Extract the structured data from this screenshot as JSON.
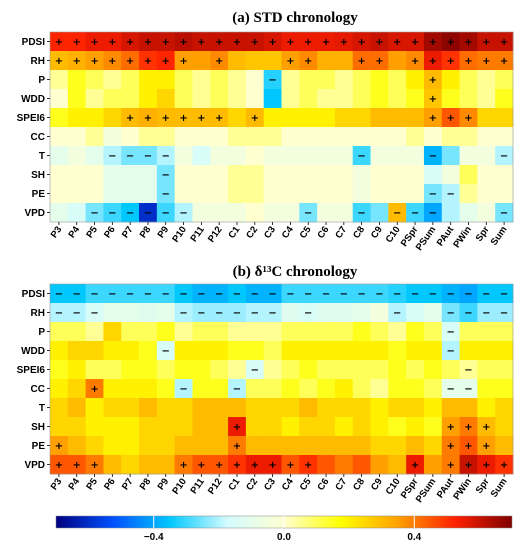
{
  "chart_data": [
    {
      "type": "heatmap",
      "title": "(a) STD chronology",
      "rows": [
        "PDSI",
        "RH",
        "P",
        "WDD",
        "SPEI6",
        "CC",
        "T",
        "SH",
        "PE",
        "VPD"
      ],
      "columns": [
        "P3",
        "P4",
        "P5",
        "P6",
        "P7",
        "P8",
        "P9",
        "P10",
        "P11",
        "P12",
        "C1",
        "C2",
        "C3",
        "C4",
        "C5",
        "C6",
        "C7",
        "C8",
        "C9",
        "C10",
        "PSpr",
        "PSum",
        "PAut",
        "PWin",
        "Spr",
        "Sum"
      ],
      "values": [
        [
          0.52,
          0.52,
          0.55,
          0.55,
          0.58,
          0.6,
          0.6,
          0.62,
          0.6,
          0.6,
          0.6,
          0.6,
          0.58,
          0.55,
          0.55,
          0.55,
          0.56,
          0.58,
          0.6,
          0.58,
          0.58,
          0.65,
          0.68,
          0.65,
          0.6,
          0.6
        ],
        [
          0.3,
          0.32,
          0.35,
          0.38,
          0.42,
          0.5,
          0.52,
          0.35,
          0.35,
          0.38,
          0.3,
          0.28,
          0.28,
          0.35,
          0.38,
          0.32,
          0.32,
          0.42,
          0.42,
          0.35,
          0.38,
          0.55,
          0.5,
          0.42,
          0.4,
          0.4
        ],
        [
          0.05,
          0.15,
          0.1,
          0.05,
          0.1,
          0.2,
          0.2,
          0.1,
          0.05,
          0.1,
          0.05,
          0.0,
          -0.32,
          0.05,
          0.1,
          0.1,
          0.05,
          0.1,
          0.15,
          0.1,
          0.2,
          0.3,
          0.2,
          0.1,
          0.05,
          0.1
        ],
        [
          0.0,
          0.15,
          0.05,
          0.1,
          0.1,
          0.2,
          0.25,
          0.1,
          0.05,
          0.1,
          0.05,
          0.0,
          -0.35,
          0.05,
          0.1,
          0.05,
          0.05,
          0.1,
          0.15,
          0.1,
          0.15,
          0.28,
          0.15,
          0.1,
          0.05,
          0.15
        ],
        [
          0.15,
          0.2,
          0.2,
          0.25,
          0.3,
          0.32,
          0.3,
          0.3,
          0.3,
          0.3,
          0.25,
          0.3,
          0.2,
          0.2,
          0.2,
          0.2,
          0.25,
          0.25,
          0.3,
          0.3,
          0.3,
          0.35,
          0.45,
          0.38,
          0.25,
          0.25
        ],
        [
          0.0,
          0.0,
          0.05,
          -0.05,
          0.0,
          0.05,
          0.05,
          0.0,
          0.0,
          0.0,
          0.05,
          0.05,
          0.05,
          0.0,
          0.0,
          0.0,
          0.0,
          0.0,
          0.0,
          0.0,
          0.05,
          0.0,
          0.05,
          0.05,
          0.0,
          0.0
        ],
        [
          -0.1,
          -0.05,
          -0.1,
          -0.2,
          -0.25,
          -0.25,
          -0.2,
          -0.05,
          -0.15,
          -0.05,
          -0.05,
          0.0,
          -0.05,
          -0.05,
          -0.05,
          -0.05,
          -0.05,
          -0.3,
          -0.05,
          -0.05,
          -0.05,
          -0.38,
          -0.25,
          -0.05,
          -0.05,
          -0.2
        ],
        [
          0.0,
          0.0,
          0.0,
          -0.1,
          -0.1,
          -0.1,
          -0.25,
          0.0,
          0.0,
          0.0,
          0.05,
          0.05,
          0.0,
          0.0,
          0.0,
          0.0,
          0.0,
          -0.05,
          0.0,
          0.0,
          0.0,
          -0.15,
          -0.05,
          0.1,
          0.0,
          0.0
        ],
        [
          0.0,
          0.0,
          0.0,
          -0.1,
          -0.1,
          -0.1,
          -0.25,
          0.0,
          0.0,
          0.0,
          0.05,
          0.05,
          0.0,
          0.0,
          0.0,
          0.0,
          0.0,
          -0.05,
          0.0,
          0.0,
          0.0,
          -0.25,
          -0.2,
          0.05,
          0.0,
          0.0
        ],
        [
          -0.1,
          -0.15,
          -0.25,
          -0.3,
          -0.35,
          -0.6,
          -0.3,
          -0.2,
          -0.05,
          -0.05,
          -0.05,
          0.0,
          -0.05,
          -0.05,
          -0.25,
          -0.05,
          -0.05,
          -0.3,
          -0.25,
          0.3,
          -0.3,
          -0.4,
          -0.2,
          -0.1,
          -0.05,
          -0.25
        ]
      ],
      "significance": [
        [
          "+",
          "+",
          "+",
          "+",
          "+",
          "+",
          "+",
          "+",
          "+",
          "+",
          "+",
          "+",
          "+",
          "+",
          "+",
          "+",
          "+",
          "+",
          "+",
          "+",
          "+",
          "+",
          "+",
          "+",
          "+",
          "+"
        ],
        [
          "+",
          "+",
          "+",
          "+",
          "+",
          "+",
          "+",
          "+",
          "",
          "+",
          "",
          "",
          "",
          "+",
          "+",
          "",
          "",
          "+",
          "+",
          "",
          "+",
          "+",
          "+",
          "+",
          "+",
          "+"
        ],
        [
          "",
          "",
          "",
          "",
          "",
          "",
          "",
          "",
          "",
          "",
          "",
          "",
          "−",
          "",
          "",
          "",
          "",
          "",
          "",
          "",
          "",
          "+",
          "",
          "",
          "",
          ""
        ],
        [
          "",
          "",
          "",
          "",
          "",
          "",
          "",
          "",
          "",
          "",
          "",
          "",
          "",
          "",
          "",
          "",
          "",
          "",
          "",
          "",
          "",
          "+",
          "",
          "",
          "",
          ""
        ],
        [
          "",
          "",
          "",
          "",
          "+",
          "+",
          "+",
          "+",
          "+",
          "+",
          "",
          "+",
          "",
          "",
          "",
          "",
          "",
          "",
          "",
          "",
          "",
          "+",
          "+",
          "+",
          "",
          ""
        ],
        [
          "",
          "",
          "",
          "",
          "",
          "",
          "",
          "",
          "",
          "",
          "",
          "",
          "",
          "",
          "",
          "",
          "",
          "",
          "",
          "",
          "",
          "",
          "",
          "",
          "",
          ""
        ],
        [
          "",
          "",
          "",
          "−",
          "−",
          "−",
          "−",
          "",
          "",
          "",
          "",
          "",
          "",
          "",
          "",
          "",
          "",
          "−",
          "",
          "",
          "",
          "−",
          "",
          "",
          "",
          "−"
        ],
        [
          "",
          "",
          "",
          "",
          "",
          "",
          "−",
          "",
          "",
          "",
          "",
          "",
          "",
          "",
          "",
          "",
          "",
          "",
          "",
          "",
          "",
          "",
          "",
          "",
          "",
          ""
        ],
        [
          "",
          "",
          "",
          "",
          "",
          "",
          "−",
          "",
          "",
          "",
          "",
          "",
          "",
          "",
          "",
          "",
          "",
          "",
          "",
          "",
          "",
          "−",
          "−",
          "",
          "",
          ""
        ],
        [
          "",
          "",
          "−",
          "−",
          "−",
          "−",
          "−",
          "−",
          "",
          "",
          "",
          "",
          "",
          "",
          "−",
          "",
          "",
          "−",
          "",
          "−",
          "−",
          "−",
          "",
          "",
          "",
          "−"
        ]
      ]
    },
    {
      "type": "heatmap",
      "title": "(b) δ¹³C chronology",
      "rows": [
        "PDSI",
        "RH",
        "P",
        "WDD",
        "SPEI6",
        "CC",
        "T",
        "SH",
        "PE",
        "VPD"
      ],
      "columns": [
        "P3",
        "P4",
        "P5",
        "P6",
        "P7",
        "P8",
        "P9",
        "P10",
        "P11",
        "P12",
        "C1",
        "C2",
        "C3",
        "C4",
        "C5",
        "C6",
        "C7",
        "C8",
        "C9",
        "C10",
        "PSpr",
        "PSum",
        "PAut",
        "PWin",
        "Spr",
        "Sum"
      ],
      "values": [
        [
          -0.35,
          -0.35,
          -0.3,
          -0.3,
          -0.3,
          -0.3,
          -0.3,
          -0.35,
          -0.38,
          -0.38,
          -0.35,
          -0.38,
          -0.38,
          -0.3,
          -0.3,
          -0.3,
          -0.3,
          -0.3,
          -0.3,
          -0.32,
          -0.35,
          -0.35,
          -0.38,
          -0.4,
          -0.35,
          -0.35
        ],
        [
          -0.2,
          -0.2,
          -0.15,
          -0.1,
          -0.1,
          -0.12,
          -0.1,
          -0.2,
          -0.22,
          -0.22,
          -0.22,
          -0.2,
          -0.2,
          -0.12,
          -0.15,
          -0.12,
          -0.12,
          -0.1,
          -0.05,
          -0.2,
          -0.15,
          -0.1,
          -0.25,
          -0.3,
          -0.22,
          -0.22
        ],
        [
          0.1,
          0.1,
          0.05,
          0.25,
          0.1,
          0.1,
          0.15,
          0.05,
          0.1,
          0.1,
          0.05,
          0.05,
          0.05,
          0.1,
          0.1,
          0.1,
          0.1,
          0.15,
          0.1,
          0.05,
          0.15,
          0.1,
          -0.15,
          0.1,
          0.1,
          0.1
        ],
        [
          0.2,
          0.25,
          0.25,
          0.2,
          0.2,
          0.15,
          -0.15,
          0.2,
          0.2,
          0.2,
          0.15,
          0.15,
          0.1,
          0.2,
          0.2,
          0.2,
          0.2,
          0.2,
          0.2,
          0.15,
          0.2,
          0.2,
          -0.2,
          0.2,
          0.2,
          0.2
        ],
        [
          0.15,
          0.2,
          0.1,
          0.1,
          0.15,
          0.15,
          0.1,
          0.15,
          0.15,
          0.1,
          0.05,
          -0.15,
          0.05,
          0.1,
          0.15,
          0.1,
          0.1,
          0.1,
          0.1,
          0.15,
          0.1,
          0.15,
          0.1,
          0.05,
          0.1,
          0.1
        ],
        [
          0.2,
          0.25,
          0.4,
          0.2,
          0.2,
          0.2,
          0.15,
          -0.2,
          0.15,
          0.15,
          -0.2,
          0.1,
          0.1,
          0.15,
          0.1,
          0.15,
          0.2,
          0.1,
          0.05,
          0.15,
          0.15,
          0.1,
          -0.1,
          -0.1,
          0.15,
          0.15
        ],
        [
          0.25,
          0.3,
          0.2,
          0.25,
          0.25,
          0.3,
          0.25,
          0.25,
          0.3,
          0.3,
          0.3,
          0.25,
          0.25,
          0.25,
          0.3,
          0.25,
          0.25,
          0.25,
          0.2,
          0.25,
          0.25,
          0.2,
          0.3,
          0.3,
          0.2,
          0.25
        ],
        [
          0.25,
          0.25,
          0.2,
          0.2,
          0.2,
          0.25,
          0.25,
          0.25,
          0.3,
          0.3,
          0.55,
          0.25,
          0.25,
          0.2,
          0.25,
          0.25,
          0.2,
          0.25,
          0.2,
          0.15,
          0.2,
          0.15,
          0.35,
          0.4,
          0.3,
          0.25
        ],
        [
          0.35,
          0.3,
          0.25,
          0.2,
          0.2,
          0.25,
          0.25,
          0.3,
          0.3,
          0.3,
          0.4,
          0.3,
          0.3,
          0.3,
          0.3,
          0.3,
          0.3,
          0.3,
          0.25,
          0.25,
          0.3,
          0.25,
          0.4,
          0.45,
          0.35,
          0.3
        ],
        [
          0.45,
          0.45,
          0.4,
          0.3,
          0.25,
          0.3,
          0.3,
          0.4,
          0.45,
          0.45,
          0.5,
          0.55,
          0.55,
          0.45,
          0.5,
          0.45,
          0.4,
          0.45,
          0.35,
          0.3,
          0.55,
          0.35,
          0.4,
          0.6,
          0.55,
          0.5
        ]
      ],
      "significance": [
        [
          "−",
          "−",
          "−",
          "−",
          "−",
          "−",
          "−",
          "−",
          "−",
          "−",
          "−",
          "−",
          "−",
          "−",
          "−",
          "−",
          "−",
          "−",
          "−",
          "−",
          "−",
          "−",
          "−",
          "−",
          "−",
          "−"
        ],
        [
          "−",
          "−",
          "−",
          "",
          "",
          "",
          "",
          "−",
          "−",
          "−",
          "−",
          "−",
          "−",
          "",
          "−",
          "",
          "",
          "",
          "",
          "−",
          "",
          "",
          "−",
          "−",
          "−",
          "−"
        ],
        [
          "",
          "",
          "",
          "",
          "",
          "",
          "",
          "",
          "",
          "",
          "",
          "",
          "",
          "",
          "",
          "",
          "",
          "",
          "",
          "",
          "",
          "",
          "−",
          "",
          "",
          ""
        ],
        [
          "",
          "",
          "",
          "",
          "",
          "",
          "−",
          "",
          "",
          "",
          "",
          "",
          "",
          "",
          "",
          "",
          "",
          "",
          "",
          "",
          "",
          "",
          "−",
          "",
          "",
          ""
        ],
        [
          "",
          "",
          "",
          "",
          "",
          "",
          "",
          "",
          "",
          "",
          "",
          "−",
          "",
          "",
          "",
          "",
          "",
          "",
          "",
          "",
          "",
          "",
          "",
          "−",
          "",
          ""
        ],
        [
          "",
          "",
          "+",
          "",
          "",
          "",
          "",
          "−",
          "",
          "",
          "−",
          "",
          "",
          "",
          "",
          "",
          "",
          "",
          "",
          "",
          "",
          "",
          "−",
          "−",
          "",
          ""
        ],
        [
          "",
          "",
          "",
          "",
          "",
          "",
          "",
          "",
          "",
          "",
          "",
          "",
          "",
          "",
          "",
          "",
          "",
          "",
          "",
          "",
          "",
          "",
          "",
          "",
          "",
          ""
        ],
        [
          "",
          "",
          "",
          "",
          "",
          "",
          "",
          "",
          "",
          "",
          "+",
          "",
          "",
          "",
          "",
          "",
          "",
          "",
          "",
          "",
          "",
          "",
          "+",
          "+",
          "+",
          ""
        ],
        [
          "+",
          "",
          "",
          "",
          "",
          "",
          "",
          "",
          "",
          "",
          "+",
          "",
          "",
          "",
          "",
          "",
          "",
          "",
          "",
          "",
          "",
          "",
          "+",
          "+",
          "+",
          ""
        ],
        [
          "+",
          "+",
          "+",
          "",
          "",
          "",
          "",
          "+",
          "+",
          "+",
          "+",
          "+",
          "+",
          "+",
          "+",
          "",
          "",
          "",
          "",
          "",
          "+",
          "",
          "+",
          "+",
          "+",
          "+"
        ]
      ]
    }
  ],
  "colorbar": {
    "range": [
      -0.7,
      0.7
    ],
    "ticks": [
      -0.4,
      0.0,
      0.4
    ],
    "tick_labels": [
      "−0.4",
      "0.0",
      "0.4"
    ],
    "stops": [
      "#00007f",
      "#0050ff",
      "#00c8ff",
      "#d2fbff",
      "#ffffd0",
      "#ffff00",
      "#ffa000",
      "#ff2000",
      "#7f0000"
    ]
  }
}
